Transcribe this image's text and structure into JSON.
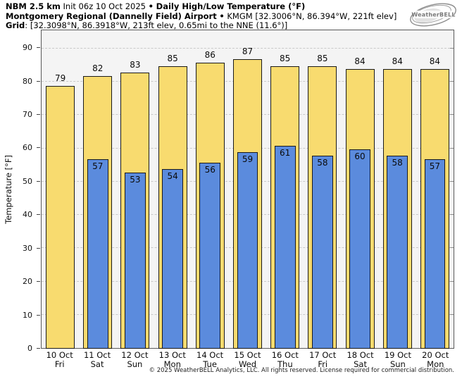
{
  "header": {
    "model": "NBM 2.5 km",
    "init": "Init 06z 10 Oct 2025",
    "sep": "•",
    "product": "Daily High/Low Temperature (°F)",
    "station": "Montgomery Regional (Dannelly Field) Airport",
    "station_meta": "KMGM [32.3006°N, 86.394°W, 221ft elev]",
    "grid_label": "Grid",
    "grid_meta": ": [32.3098°N, 86.3918°W, 213ft elev, 0.65mi to the NNE (11.6°)]"
  },
  "logo": {
    "brand": "WeatherBELL"
  },
  "chart_data": {
    "type": "bar",
    "title": "Daily High/Low Temperature (°F)",
    "ylabel": "Temperature [°F]",
    "ylim": [
      0,
      95.5
    ],
    "yticks": [
      0,
      10,
      20,
      30,
      40,
      50,
      60,
      70,
      80,
      90
    ],
    "grid": "horizontal dashed",
    "legend": "none",
    "plot_bg": "#f4f4f4",
    "categories": [
      {
        "date": "10 Oct",
        "day": "Fri"
      },
      {
        "date": "11 Oct",
        "day": "Sat"
      },
      {
        "date": "12 Oct",
        "day": "Sun"
      },
      {
        "date": "13 Oct",
        "day": "Mon"
      },
      {
        "date": "14 Oct",
        "day": "Tue"
      },
      {
        "date": "15 Oct",
        "day": "Wed"
      },
      {
        "date": "16 Oct",
        "day": "Thu"
      },
      {
        "date": "17 Oct",
        "day": "Fri"
      },
      {
        "date": "18 Oct",
        "day": "Sat"
      },
      {
        "date": "19 Oct",
        "day": "Sun"
      },
      {
        "date": "20 Oct",
        "day": "Mon"
      }
    ],
    "series": [
      {
        "name": "High",
        "color": "#f8db6f",
        "values": [
          79,
          82,
          83,
          85,
          86,
          87,
          85,
          85,
          84,
          84,
          84
        ]
      },
      {
        "name": "Low",
        "color": "#5b8bdd",
        "values": [
          null,
          57,
          53,
          54,
          56,
          59,
          61,
          58,
          60,
          58,
          57
        ]
      }
    ]
  },
  "footer": {
    "copyright": "© 2025 WeatherBELL Analytics, LLC. All rights reserved. License required for commercial distribution."
  }
}
